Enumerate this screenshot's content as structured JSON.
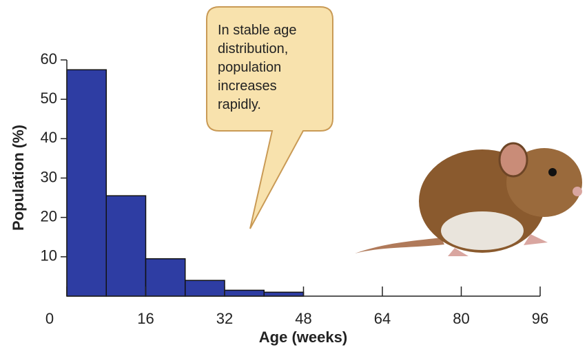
{
  "chart_data": {
    "type": "histogram",
    "bins": [
      0,
      8,
      16,
      24,
      32,
      40,
      48
    ],
    "values": [
      57.5,
      25.5,
      9.5,
      4,
      1.5,
      1
    ],
    "color": "#2e3da3",
    "xlabel": "Age (weeks)",
    "ylabel": "Population (%)",
    "xlim": [
      0,
      96
    ],
    "xticks": [
      0,
      16,
      32,
      48,
      64,
      80,
      96
    ],
    "ylim": [
      0,
      60
    ],
    "yticks": [
      10,
      20,
      30,
      40,
      50,
      60
    ],
    "annotation": [
      "In stable age",
      "distribution,",
      "population",
      "increases",
      "rapidly."
    ]
  }
}
